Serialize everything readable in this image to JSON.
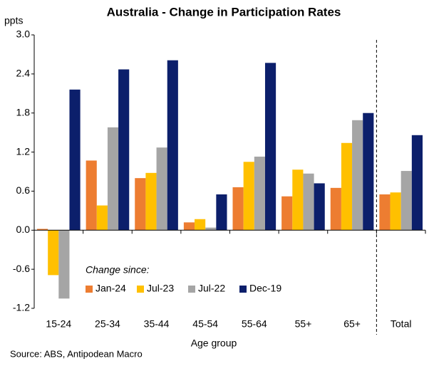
{
  "chart_data": {
    "type": "bar",
    "title": "Australia - Change in Participation Rates",
    "y_unit": "ppts",
    "x_label": "Age group",
    "source": "Source: ABS, Antipodean Macro",
    "legend_title": "Change since:",
    "categories": [
      "15-24",
      "25-34",
      "35-44",
      "45-54",
      "55-64",
      "55+",
      "65+",
      "Total"
    ],
    "series": [
      {
        "name": "Jan-24",
        "color": "#ed7d31",
        "values": [
          0.02,
          1.07,
          0.8,
          0.12,
          0.66,
          0.52,
          0.65,
          0.55
        ]
      },
      {
        "name": "Jul-23",
        "color": "#ffc000",
        "values": [
          -0.69,
          0.38,
          0.88,
          0.17,
          1.05,
          0.93,
          1.34,
          0.58
        ]
      },
      {
        "name": "Jul-22",
        "color": "#a5a5a5",
        "values": [
          -1.05,
          1.58,
          1.27,
          0.04,
          1.13,
          0.87,
          1.69,
          0.91
        ]
      },
      {
        "name": "Dec-19",
        "color": "#0c1f6b",
        "values": [
          2.16,
          2.47,
          2.61,
          0.55,
          2.57,
          0.72,
          1.8,
          1.46
        ]
      }
    ],
    "ylim": [
      -1.2,
      3
    ],
    "yticks": [
      {
        "value": 3,
        "label": "3.0"
      },
      2.4,
      1.8,
      1.2,
      0.6,
      {
        "value": 0,
        "label": "0.0"
      },
      -0.6,
      -1.2
    ],
    "grid": false
  }
}
